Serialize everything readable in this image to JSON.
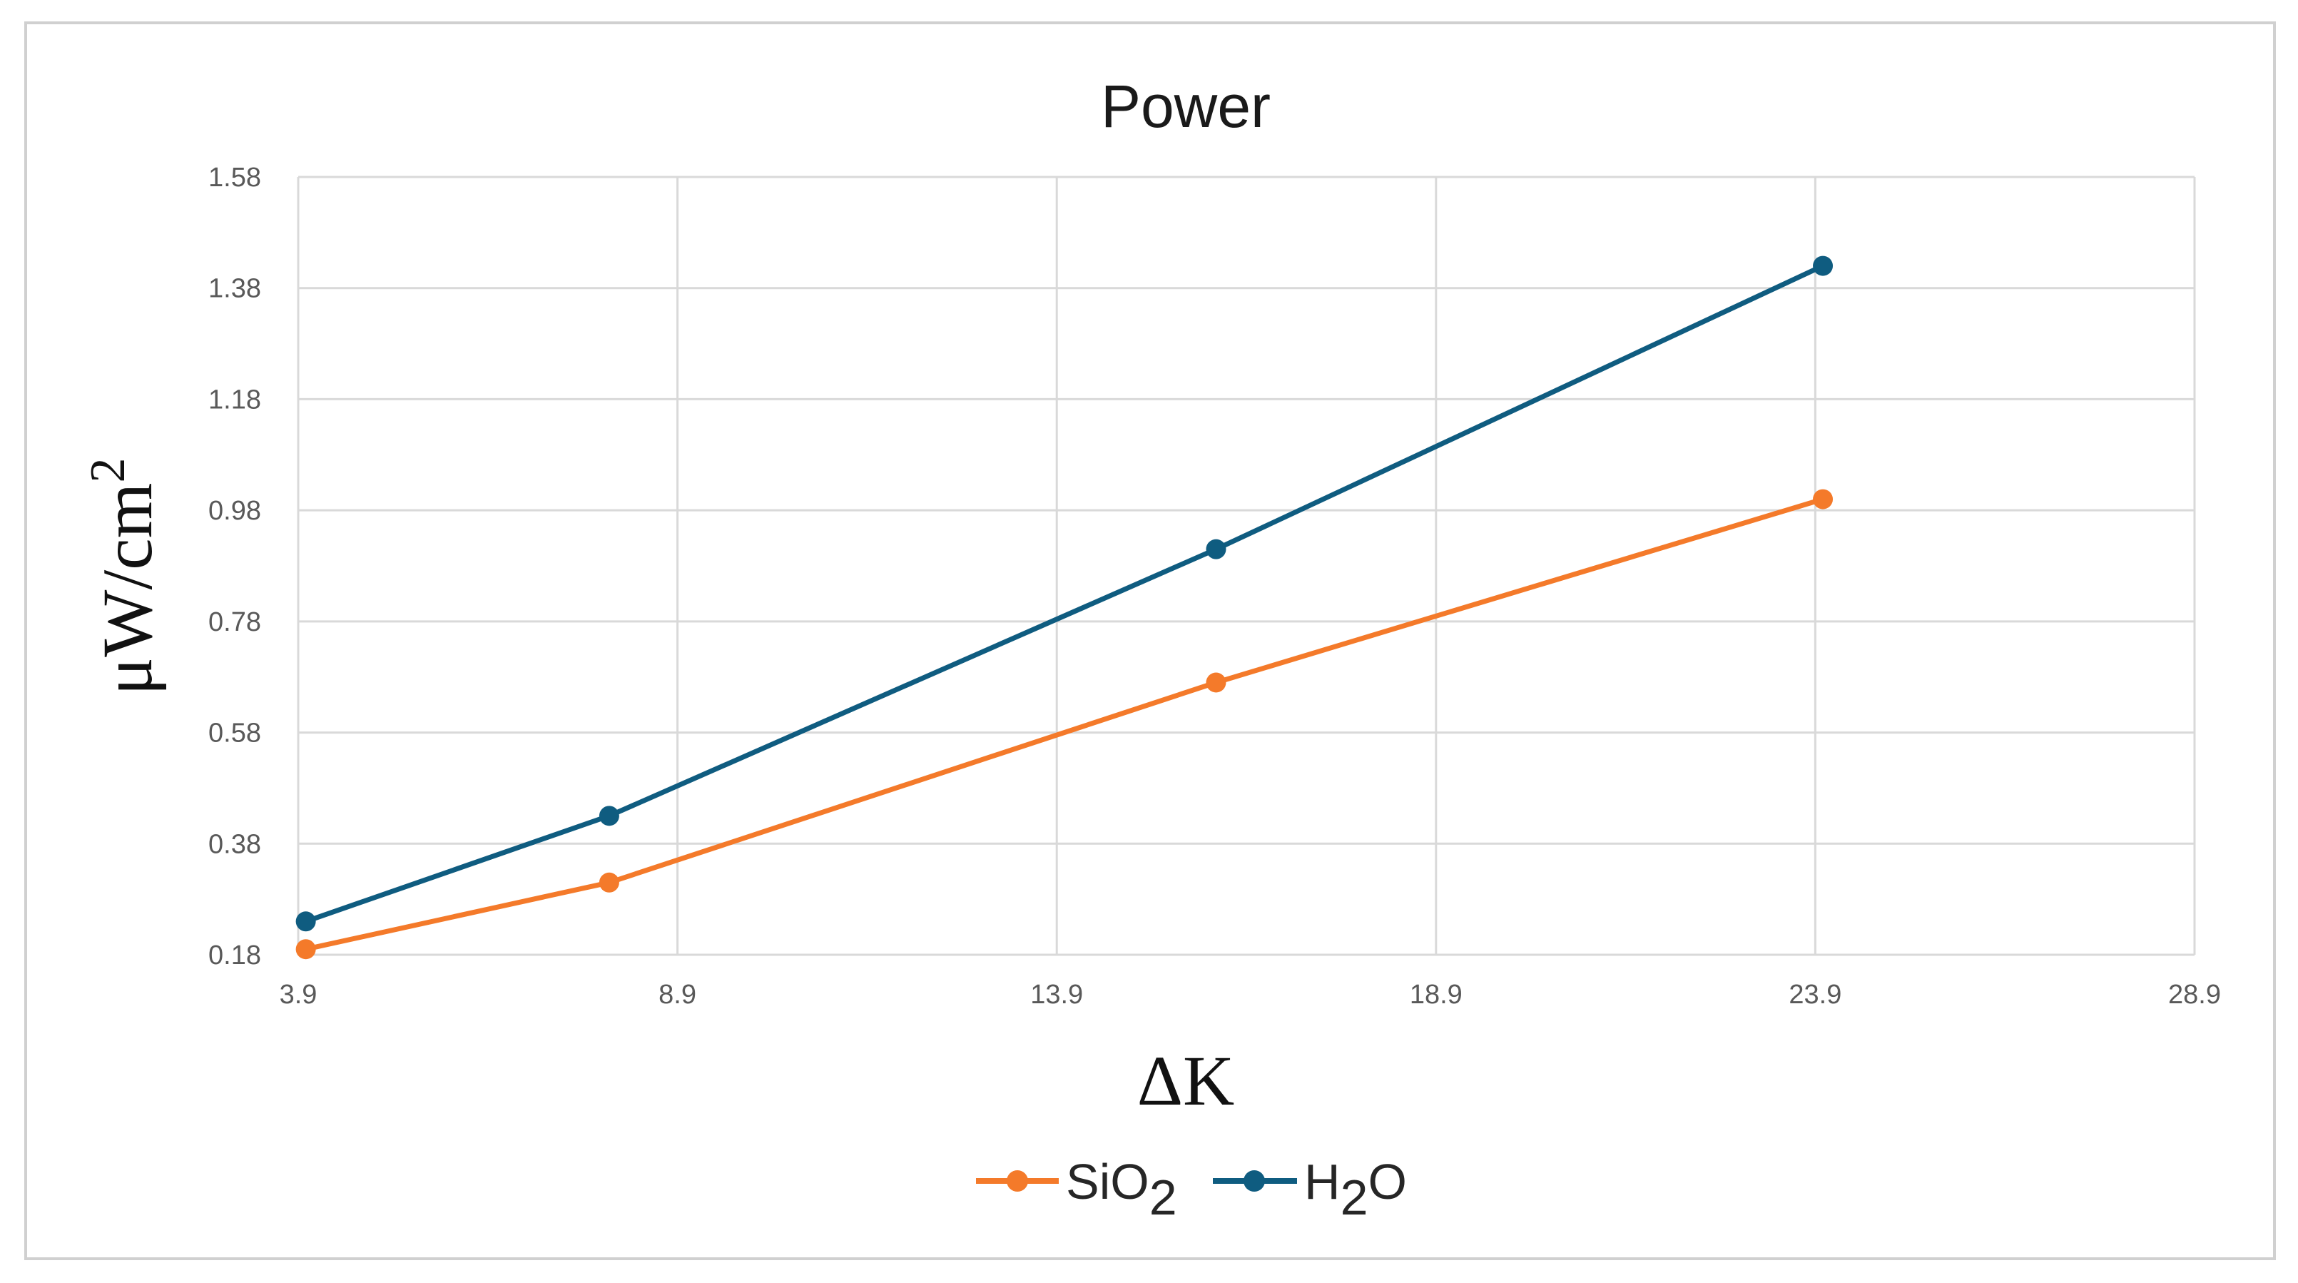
{
  "chart_data": {
    "type": "line",
    "title": "Power",
    "xlabel": "ΔK",
    "ylabel": {
      "main": "μW/cm",
      "sup": "2"
    },
    "xlim": [
      3.9,
      28.9
    ],
    "ylim": [
      0.18,
      1.58
    ],
    "xticks": [
      "3.9",
      "8.9",
      "13.9",
      "18.9",
      "23.9",
      "28.9"
    ],
    "yticks": [
      "1.58",
      "1.38",
      "1.18",
      "0.98",
      "0.78",
      "0.58",
      "0.38",
      "0.18"
    ],
    "grid": true,
    "legend_position": "bottom",
    "series": [
      {
        "name": {
          "base": "SiO",
          "sub": "2",
          "tail": ""
        },
        "color": "#f47a2a",
        "points": [
          {
            "x": 4.0,
            "y": 0.19
          },
          {
            "x": 8.0,
            "y": 0.31
          },
          {
            "x": 16.0,
            "y": 0.67
          },
          {
            "x": 24.0,
            "y": 1.0
          }
        ]
      },
      {
        "name": {
          "base": "H",
          "sub": "2",
          "tail": "O"
        },
        "color": "#0f5c80",
        "points": [
          {
            "x": 4.0,
            "y": 0.24
          },
          {
            "x": 8.0,
            "y": 0.43
          },
          {
            "x": 16.0,
            "y": 0.91
          },
          {
            "x": 24.0,
            "y": 1.42
          }
        ]
      }
    ]
  }
}
